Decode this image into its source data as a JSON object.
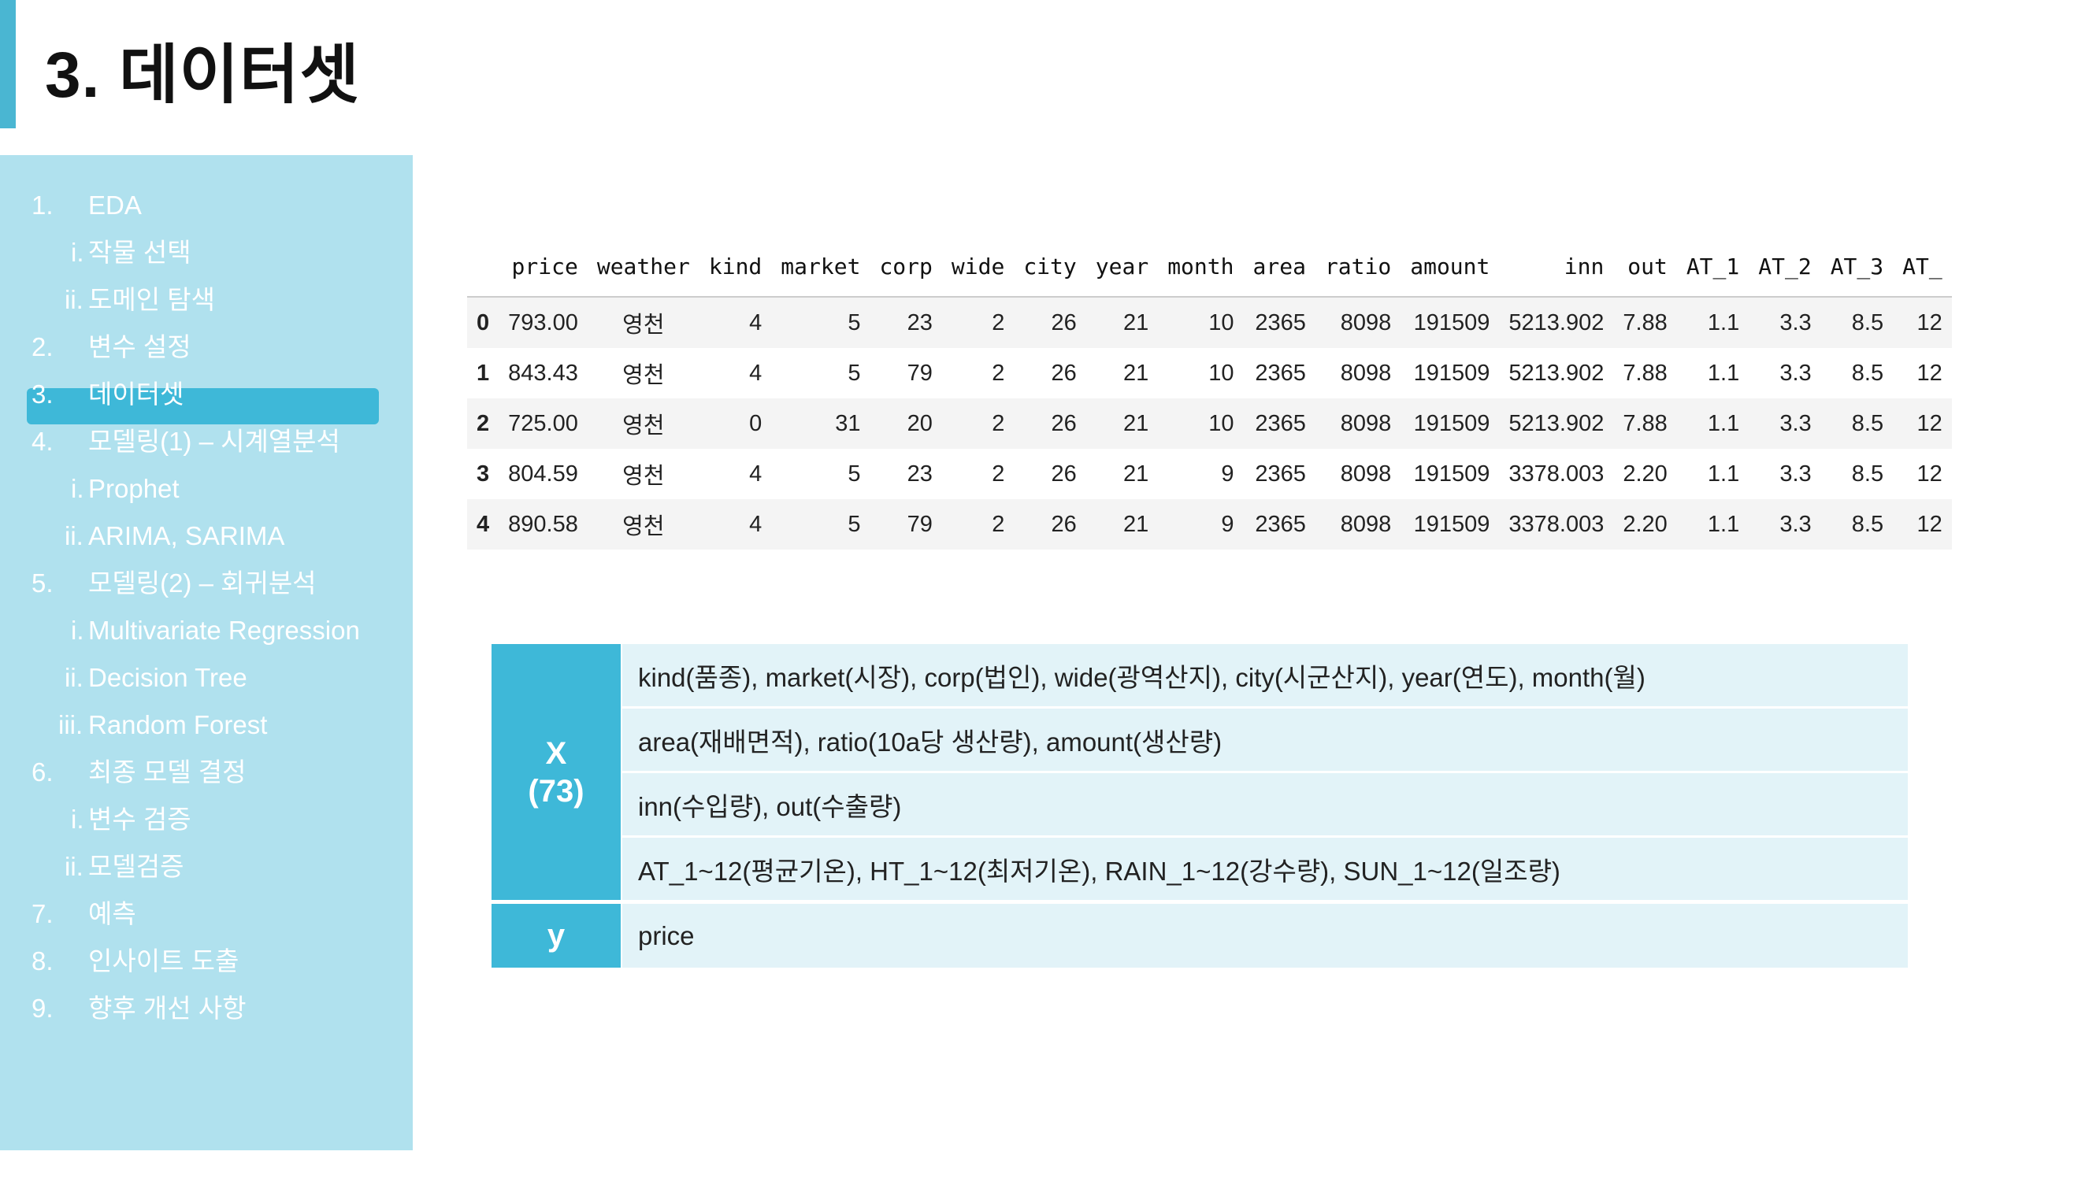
{
  "slide": {
    "title": "3. 데이터셋"
  },
  "sidebar": {
    "items": [
      {
        "num": "1.",
        "label": "EDA",
        "level": 1
      },
      {
        "num": "i.",
        "label": "작물 선택",
        "level": 2
      },
      {
        "num": "ii.",
        "label": "도메인 탐색",
        "level": 2
      },
      {
        "num": "2.",
        "label": "변수 설정",
        "level": 1
      },
      {
        "num": "3.",
        "label": "데이터셋",
        "level": 1,
        "active": true
      },
      {
        "num": "4.",
        "label": "모델링(1) – 시계열분석",
        "level": 1
      },
      {
        "num": "i.",
        "label": "Prophet",
        "level": 2
      },
      {
        "num": "ii.",
        "label": "ARIMA, SARIMA",
        "level": 2
      },
      {
        "num": "5.",
        "label": "모델링(2) – 회귀분석",
        "level": 1
      },
      {
        "num": "i.",
        "label": "Multivariate Regression",
        "level": 2
      },
      {
        "num": "ii.",
        "label": "Decision Tree",
        "level": 2
      },
      {
        "num": "iii.",
        "label": "Random Forest",
        "level": 2
      },
      {
        "num": "6.",
        "label": "최종 모델 결정",
        "level": 1
      },
      {
        "num": "i.",
        "label": "변수 검증",
        "level": 2
      },
      {
        "num": "ii.",
        "label": "모델검증",
        "level": 2
      },
      {
        "num": "7.",
        "label": "예측",
        "level": 1
      },
      {
        "num": "8.",
        "label": "인사이트 도출",
        "level": 1
      },
      {
        "num": "9.",
        "label": "향후 개선 사항",
        "level": 1
      }
    ]
  },
  "dataframe": {
    "columns": [
      "price",
      "weather",
      "kind",
      "market",
      "corp",
      "wide",
      "city",
      "year",
      "month",
      "area",
      "ratio",
      "amount",
      "inn",
      "out",
      "AT_1",
      "AT_2",
      "AT_3",
      "AT_"
    ],
    "rows": [
      {
        "index": "0",
        "cells": [
          "793.00",
          "영천",
          "4",
          "5",
          "23",
          "2",
          "26",
          "21",
          "10",
          "2365",
          "8098",
          "191509",
          "5213.902",
          "7.88",
          "1.1",
          "3.3",
          "8.5",
          "12"
        ]
      },
      {
        "index": "1",
        "cells": [
          "843.43",
          "영천",
          "4",
          "5",
          "79",
          "2",
          "26",
          "21",
          "10",
          "2365",
          "8098",
          "191509",
          "5213.902",
          "7.88",
          "1.1",
          "3.3",
          "8.5",
          "12"
        ]
      },
      {
        "index": "2",
        "cells": [
          "725.00",
          "영천",
          "0",
          "31",
          "20",
          "2",
          "26",
          "21",
          "10",
          "2365",
          "8098",
          "191509",
          "5213.902",
          "7.88",
          "1.1",
          "3.3",
          "8.5",
          "12"
        ]
      },
      {
        "index": "3",
        "cells": [
          "804.59",
          "영천",
          "4",
          "5",
          "23",
          "2",
          "26",
          "21",
          "9",
          "2365",
          "8098",
          "191509",
          "3378.003",
          "2.20",
          "1.1",
          "3.3",
          "8.5",
          "12"
        ]
      },
      {
        "index": "4",
        "cells": [
          "890.58",
          "영천",
          "4",
          "5",
          "79",
          "2",
          "26",
          "21",
          "9",
          "2365",
          "8098",
          "191509",
          "3378.003",
          "2.20",
          "1.1",
          "3.3",
          "8.5",
          "12"
        ]
      }
    ]
  },
  "variables": {
    "x_label": "X",
    "x_count": "(73)",
    "x_rows": [
      "kind(품종), market(시장), corp(법인), wide(광역산지), city(시군산지), year(연도), month(월)",
      "area(재배면적), ratio(10a당 생산량), amount(생산량)",
      "inn(수입량), out(수출량)",
      "AT_1~12(평균기온), HT_1~12(최저기온), RAIN_1~12(강수량), SUN_1~12(일조량)"
    ],
    "y_label": "y",
    "y_value": "price"
  }
}
